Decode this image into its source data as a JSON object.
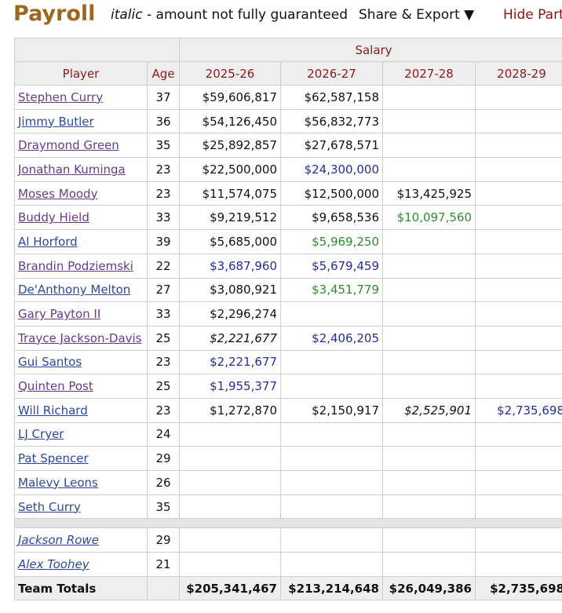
{
  "header": {
    "title": "Payroll",
    "legend_italic": "italic",
    "legend_text": " - amount not fully guaranteed",
    "share": "Share & Export ▼",
    "hide": "Hide Part"
  },
  "table": {
    "group_header": "Salary",
    "columns": [
      "Player",
      "Age",
      "2025-26",
      "2026-27",
      "2027-28",
      "2028-29"
    ],
    "rows": [
      {
        "player": "Stephen Curry",
        "link_color": "#6b3a8a",
        "age": 37,
        "salaries": [
          "$59,606,817",
          "$62,587,158",
          null,
          null
        ]
      },
      {
        "player": "Jimmy Butler",
        "link_color": "#2b4a9b",
        "age": 36,
        "salaries": [
          "$54,126,450",
          "$56,832,773",
          null,
          null
        ]
      },
      {
        "player": "Draymond Green",
        "link_color": "#6b3a8a",
        "age": 35,
        "salaries": [
          "$25,892,857",
          "$27,678,571",
          null,
          null
        ]
      },
      {
        "player": "Jonathan Kuminga",
        "link_color": "#6b3a8a",
        "age": 23,
        "salaries": [
          "$22,500,000",
          {
            "text": "$24,300,000",
            "color": "#232f9a"
          },
          null,
          null
        ]
      },
      {
        "player": "Moses Moody",
        "link_color": "#6b3a8a",
        "age": 23,
        "salaries": [
          "$11,574,075",
          "$12,500,000",
          "$13,425,925",
          null
        ]
      },
      {
        "player": "Buddy Hield",
        "link_color": "#6b3a8a",
        "age": 33,
        "salaries": [
          "$9,219,512",
          "$9,658,536",
          {
            "text": "$10,097,560",
            "color": "#2e8b2e"
          },
          null
        ]
      },
      {
        "player": "Al Horford",
        "link_color": "#2b4a9b",
        "age": 39,
        "salaries": [
          "$5,685,000",
          {
            "text": "$5,969,250",
            "color": "#2e8b2e"
          },
          null,
          null
        ]
      },
      {
        "player": "Brandin Podziemski",
        "link_color": "#6b3a8a",
        "age": 22,
        "salaries": [
          {
            "text": "$3,687,960",
            "color": "#232f9a"
          },
          {
            "text": "$5,679,459",
            "color": "#232f9a"
          },
          null,
          null
        ]
      },
      {
        "player": "De'Anthony Melton",
        "link_color": "#2b4a9b",
        "age": 27,
        "salaries": [
          "$3,080,921",
          {
            "text": "$3,451,779",
            "color": "#2e8b2e"
          },
          null,
          null
        ]
      },
      {
        "player": "Gary Payton II",
        "link_color": "#6b3a8a",
        "age": 33,
        "salaries": [
          "$2,296,274",
          null,
          null,
          null
        ]
      },
      {
        "player": "Trayce Jackson-Davis",
        "link_color": "#6b3a8a",
        "age": 25,
        "salaries": [
          {
            "text": "$2,221,677",
            "italic": true
          },
          {
            "text": "$2,406,205",
            "color": "#232f9a"
          },
          null,
          null
        ]
      },
      {
        "player": "Gui Santos",
        "link_color": "#2b4a9b",
        "age": 23,
        "salaries": [
          {
            "text": "$2,221,677",
            "color": "#232f9a"
          },
          null,
          null,
          null
        ]
      },
      {
        "player": "Quinten Post",
        "link_color": "#6b3a8a",
        "age": 25,
        "salaries": [
          {
            "text": "$1,955,377",
            "color": "#232f9a"
          },
          null,
          null,
          null
        ]
      },
      {
        "player": "Will Richard",
        "link_color": "#2b4a9b",
        "age": 23,
        "salaries": [
          "$1,272,870",
          "$2,150,917",
          {
            "text": "$2,525,901",
            "italic": true
          },
          {
            "text": "$2,735,698",
            "color": "#232f9a"
          }
        ]
      },
      {
        "player": "LJ Cryer",
        "link_color": "#2b4a9b",
        "age": 24,
        "salaries": [
          null,
          null,
          null,
          null
        ]
      },
      {
        "player": "Pat Spencer",
        "link_color": "#2b4a9b",
        "age": 29,
        "salaries": [
          null,
          null,
          null,
          null
        ]
      },
      {
        "player": "Malevy Leons",
        "link_color": "#2b4a9b",
        "age": 26,
        "salaries": [
          null,
          null,
          null,
          null
        ]
      },
      {
        "player": "Seth Curry",
        "link_color": "#2b4a9b",
        "age": 35,
        "salaries": [
          null,
          null,
          null,
          null
        ]
      }
    ],
    "two_way_rows": [
      {
        "player": "Jackson Rowe",
        "link_color": "#2b4a9b",
        "age": 29,
        "salaries": [
          null,
          null,
          null,
          null
        ]
      },
      {
        "player": "Alex Toohey",
        "link_color": "#2b4a9b",
        "age": 21,
        "salaries": [
          null,
          null,
          null,
          null
        ]
      }
    ],
    "totals": {
      "label": "Team Totals",
      "salaries": [
        "$205,341,467",
        "$213,214,648",
        "$26,049,386",
        "$2,735,698"
      ]
    }
  }
}
